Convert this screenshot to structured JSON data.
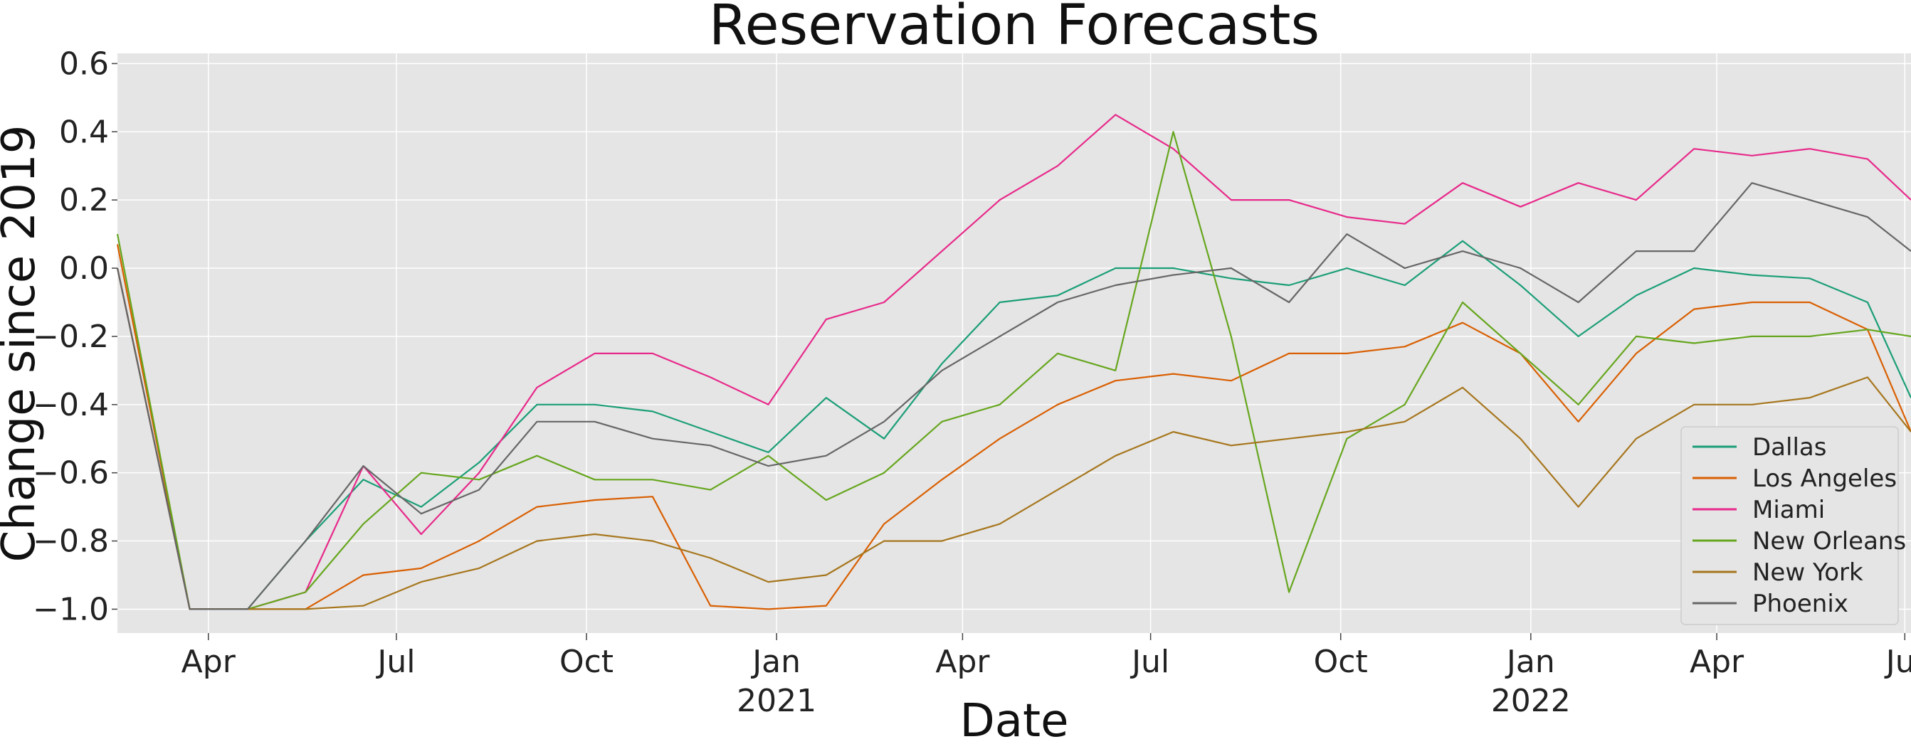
{
  "chart_data": {
    "type": "line",
    "title": "Reservation Forecasts",
    "xlabel": "Date",
    "ylabel": "Change since 2019",
    "x_tick_labels": [
      {
        "date": "2020-04-01",
        "label": "Apr",
        "sub": ""
      },
      {
        "date": "2020-07-01",
        "label": "Jul",
        "sub": ""
      },
      {
        "date": "2020-10-01",
        "label": "Oct",
        "sub": ""
      },
      {
        "date": "2021-01-01",
        "label": "Jan",
        "sub": "2021"
      },
      {
        "date": "2021-04-01",
        "label": "Apr",
        "sub": ""
      },
      {
        "date": "2021-07-01",
        "label": "Jul",
        "sub": ""
      },
      {
        "date": "2021-10-01",
        "label": "Oct",
        "sub": ""
      },
      {
        "date": "2022-01-01",
        "label": "Jan",
        "sub": "2022"
      },
      {
        "date": "2022-04-01",
        "label": "Apr",
        "sub": ""
      },
      {
        "date": "2022-07-01",
        "label": "Jul",
        "sub": ""
      }
    ],
    "y_ticks": [
      -1.0,
      -0.8,
      -0.6,
      -0.4,
      -0.2,
      0.0,
      0.2,
      0.4,
      0.6
    ],
    "y_tick_labels": [
      "−1.0",
      "−0.8",
      "−0.6",
      "−0.4",
      "−0.2",
      "0.0",
      "0.2",
      "0.4",
      "0.6"
    ],
    "xlim": [
      "2020-02-17",
      "2022-07-04"
    ],
    "ylim": [
      -1.07,
      0.63
    ],
    "grid": true,
    "legend_position": "lower-right",
    "x_dates": [
      "2020-02-17",
      "2020-03-23",
      "2020-04-20",
      "2020-05-18",
      "2020-06-15",
      "2020-07-13",
      "2020-08-10",
      "2020-09-07",
      "2020-10-05",
      "2020-11-02",
      "2020-11-30",
      "2020-12-28",
      "2021-01-25",
      "2021-02-22",
      "2021-03-22",
      "2021-04-19",
      "2021-05-17",
      "2021-06-14",
      "2021-07-12",
      "2021-08-09",
      "2021-09-06",
      "2021-10-04",
      "2021-11-01",
      "2021-11-29",
      "2021-12-27",
      "2022-01-24",
      "2022-02-21",
      "2022-03-21",
      "2022-04-18",
      "2022-05-16",
      "2022-06-13",
      "2022-07-04"
    ],
    "series": [
      {
        "name": "Dallas",
        "color": "#1b9e77",
        "values": [
          0.0,
          -1.0,
          -1.0,
          -0.8,
          -0.62,
          -0.7,
          -0.57,
          -0.4,
          -0.4,
          -0.42,
          -0.48,
          -0.54,
          -0.38,
          -0.5,
          -0.28,
          -0.1,
          -0.08,
          0.0,
          0.0,
          -0.03,
          -0.05,
          0.0,
          -0.05,
          0.08,
          -0.05,
          -0.2,
          -0.08,
          0.0,
          -0.02,
          -0.03,
          -0.1,
          -0.38
        ]
      },
      {
        "name": "Los Angeles",
        "color": "#d95f02",
        "values": [
          0.07,
          -1.0,
          -1.0,
          -1.0,
          -0.9,
          -0.88,
          -0.8,
          -0.7,
          -0.68,
          -0.67,
          -0.99,
          -1.0,
          -0.99,
          -0.75,
          -0.62,
          -0.5,
          -0.4,
          -0.33,
          -0.31,
          -0.33,
          -0.25,
          -0.25,
          -0.23,
          -0.16,
          -0.25,
          -0.45,
          -0.25,
          -0.12,
          -0.1,
          -0.1,
          -0.18,
          -0.48
        ]
      },
      {
        "name": "Miami",
        "color": "#e7298a",
        "values": [
          0.0,
          -1.0,
          -1.0,
          -0.95,
          -0.58,
          -0.78,
          -0.6,
          -0.35,
          -0.25,
          -0.25,
          -0.32,
          -0.4,
          -0.15,
          -0.1,
          0.05,
          0.2,
          0.3,
          0.45,
          0.35,
          0.2,
          0.2,
          0.15,
          0.13,
          0.25,
          0.18,
          0.25,
          0.2,
          0.35,
          0.33,
          0.35,
          0.32,
          0.2
        ]
      },
      {
        "name": "New Orleans",
        "color": "#66a61e",
        "values": [
          0.1,
          -1.0,
          -1.0,
          -0.95,
          -0.75,
          -0.6,
          -0.62,
          -0.55,
          -0.62,
          -0.62,
          -0.65,
          -0.55,
          -0.68,
          -0.6,
          -0.45,
          -0.4,
          -0.25,
          -0.3,
          0.4,
          -0.2,
          -0.95,
          -0.5,
          -0.4,
          -0.1,
          -0.25,
          -0.4,
          -0.2,
          -0.22,
          -0.2,
          -0.2,
          -0.18,
          -0.2
        ]
      },
      {
        "name": "New York",
        "color": "#a6761d",
        "values": [
          0.0,
          -1.0,
          -1.0,
          -1.0,
          -0.99,
          -0.92,
          -0.88,
          -0.8,
          -0.78,
          -0.8,
          -0.85,
          -0.92,
          -0.9,
          -0.8,
          -0.8,
          -0.75,
          -0.65,
          -0.55,
          -0.48,
          -0.52,
          -0.5,
          -0.48,
          -0.45,
          -0.35,
          -0.5,
          -0.7,
          -0.5,
          -0.4,
          -0.4,
          -0.38,
          -0.32,
          -0.48
        ]
      },
      {
        "name": "Phoenix",
        "color": "#666666",
        "values": [
          0.0,
          -1.0,
          -1.0,
          -0.8,
          -0.58,
          -0.72,
          -0.65,
          -0.45,
          -0.45,
          -0.5,
          -0.52,
          -0.58,
          -0.55,
          -0.45,
          -0.3,
          -0.2,
          -0.1,
          -0.05,
          -0.02,
          0.0,
          -0.1,
          0.1,
          0.0,
          0.05,
          0.0,
          -0.1,
          0.05,
          0.05,
          0.25,
          0.2,
          0.15,
          0.05
        ]
      }
    ]
  }
}
